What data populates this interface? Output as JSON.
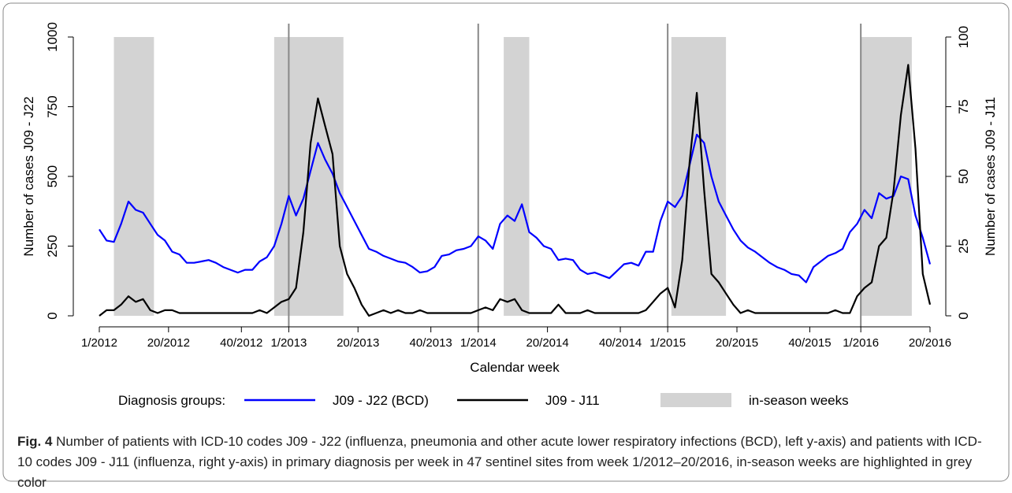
{
  "chart_data": {
    "type": "line",
    "x_label": "Calendar week",
    "y_label": "Number of cases J09 - J22",
    "y2_label": "Number of cases J09 - J11",
    "legend_title": "Diagnosis groups:",
    "season_label": "in-season weeks",
    "season_color": "#d3d3d3",
    "seasons": [
      [
        4,
        15
      ],
      [
        48,
        67
      ],
      [
        111,
        118
      ],
      [
        157,
        172
      ],
      [
        209,
        223
      ]
    ],
    "year_lines": [
      52,
      104,
      156,
      209
    ],
    "xlim": [
      0,
      228
    ],
    "xticks": [
      {
        "value": 0,
        "label": "1/2012"
      },
      {
        "value": 19,
        "label": "20/2012"
      },
      {
        "value": 39,
        "label": "40/2012"
      },
      {
        "value": 52,
        "label": "1/2013"
      },
      {
        "value": 71,
        "label": "20/2013"
      },
      {
        "value": 91,
        "label": "40/2013"
      },
      {
        "value": 104,
        "label": "1/2014"
      },
      {
        "value": 123,
        "label": "20/2014"
      },
      {
        "value": 143,
        "label": "40/2014"
      },
      {
        "value": 156,
        "label": "1/2015"
      },
      {
        "value": 175,
        "label": "20/2015"
      },
      {
        "value": 195,
        "label": "40/2015"
      },
      {
        "value": 209,
        "label": "1/2016"
      },
      {
        "value": 228,
        "label": "20/2016"
      }
    ],
    "ylim": [
      0,
      1000
    ],
    "yticks": [
      0,
      250,
      500,
      750,
      1000
    ],
    "y2lim": [
      0,
      100
    ],
    "y2ticks": [
      0,
      25,
      50,
      75,
      100
    ],
    "x": [
      0,
      2,
      4,
      6,
      8,
      10,
      12,
      14,
      16,
      18,
      20,
      22,
      24,
      26,
      28,
      30,
      32,
      34,
      36,
      38,
      40,
      42,
      44,
      46,
      48,
      50,
      52,
      54,
      56,
      58,
      60,
      62,
      64,
      66,
      68,
      70,
      72,
      74,
      76,
      78,
      80,
      82,
      84,
      86,
      88,
      90,
      92,
      94,
      96,
      98,
      100,
      102,
      104,
      106,
      108,
      110,
      112,
      114,
      116,
      118,
      120,
      122,
      124,
      126,
      128,
      130,
      132,
      134,
      136,
      138,
      140,
      142,
      144,
      146,
      148,
      150,
      152,
      154,
      156,
      158,
      160,
      162,
      164,
      166,
      168,
      170,
      172,
      174,
      176,
      178,
      180,
      182,
      184,
      186,
      188,
      190,
      192,
      194,
      196,
      198,
      200,
      202,
      204,
      206,
      208,
      210,
      212,
      214,
      216,
      218,
      220,
      222,
      224,
      226,
      228
    ],
    "series": [
      {
        "name": "J09 - J22 (BCD)",
        "color": "#0000ff",
        "axis": "y",
        "values": [
          310,
          270,
          265,
          330,
          410,
          380,
          370,
          330,
          290,
          270,
          230,
          220,
          190,
          190,
          195,
          200,
          190,
          175,
          165,
          155,
          165,
          165,
          195,
          210,
          250,
          330,
          430,
          360,
          420,
          520,
          620,
          560,
          510,
          440,
          390,
          340,
          290,
          240,
          230,
          215,
          205,
          195,
          190,
          175,
          155,
          160,
          175,
          215,
          220,
          235,
          240,
          250,
          285,
          270,
          240,
          330,
          360,
          340,
          400,
          300,
          280,
          250,
          240,
          200,
          205,
          200,
          165,
          150,
          155,
          145,
          135,
          160,
          185,
          190,
          180,
          230,
          230,
          340,
          410,
          390,
          430,
          540,
          650,
          620,
          500,
          410,
          360,
          310,
          270,
          245,
          230,
          210,
          190,
          175,
          165,
          150,
          145,
          120,
          175,
          195,
          215,
          225,
          240,
          300,
          330,
          380,
          350,
          440,
          420,
          430,
          500,
          490,
          360,
          280,
          185
        ]
      },
      {
        "name": "J09 - J11",
        "color": "#000000",
        "axis": "y2",
        "values": [
          0,
          2,
          2,
          4,
          7,
          5,
          6,
          2,
          1,
          2,
          2,
          1,
          1,
          1,
          1,
          1,
          1,
          1,
          1,
          1,
          1,
          1,
          2,
          1,
          3,
          5,
          6,
          10,
          30,
          62,
          78,
          68,
          58,
          25,
          15,
          10,
          4,
          0,
          1,
          2,
          1,
          2,
          1,
          1,
          2,
          1,
          1,
          1,
          1,
          1,
          1,
          1,
          2,
          3,
          2,
          6,
          5,
          6,
          2,
          1,
          1,
          1,
          1,
          4,
          1,
          1,
          1,
          2,
          1,
          1,
          1,
          1,
          1,
          1,
          1,
          2,
          5,
          8,
          10,
          3,
          20,
          55,
          80,
          45,
          15,
          12,
          8,
          4,
          1,
          2,
          1,
          1,
          1,
          1,
          1,
          1,
          1,
          1,
          1,
          1,
          1,
          2,
          1,
          1,
          7,
          10,
          12,
          25,
          28,
          45,
          72,
          90,
          60,
          15,
          4
        ]
      }
    ]
  },
  "caption": {
    "label": "Fig. 4",
    "text": "Number of patients with ICD-10 codes J09 - J22 (influenza, pneumonia and other acute lower respiratory infections (BCD), left y-axis) and patients with ICD-10 codes J09 - J11 (influenza, right y-axis) in primary diagnosis per week in 47 sentinel sites from week 1/2012–20/2016, in-season weeks are highlighted in grey color"
  }
}
